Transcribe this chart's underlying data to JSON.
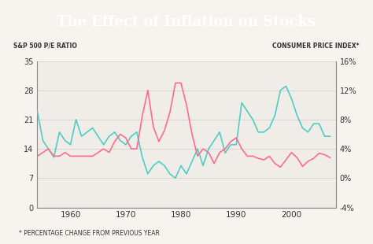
{
  "title": "The Effect of Inflation on Stocks",
  "title_bg_color": "#2d5f5a",
  "title_text_color": "#ffffff",
  "chart_bg_color": "#f0ede8",
  "left_label": "S&P 500 P/E RATIO",
  "right_label": "CONSUMER PRICE INDEX*",
  "footnote": "* PERCENTAGE CHANGE FROM PREVIOUS YEAR",
  "left_ylim": [
    0,
    35
  ],
  "left_yticks": [
    0,
    7,
    14,
    21,
    28,
    35
  ],
  "right_yticks_labels": [
    "-4%",
    "0%",
    "4%",
    "8%",
    "12%",
    "16%"
  ],
  "right_yticks_vals": [
    -1,
    0,
    1,
    2,
    3,
    4
  ],
  "pe_color": "#4ecdc4",
  "cpi_color": "#ff6b8a",
  "years": [
    1954,
    1955,
    1956,
    1957,
    1958,
    1959,
    1960,
    1961,
    1962,
    1963,
    1964,
    1965,
    1966,
    1967,
    1968,
    1969,
    1970,
    1971,
    1972,
    1973,
    1974,
    1975,
    1976,
    1977,
    1978,
    1979,
    1980,
    1981,
    1982,
    1983,
    1984,
    1985,
    1986,
    1987,
    1988,
    1989,
    1990,
    1991,
    1992,
    1993,
    1994,
    1995,
    1996,
    1997,
    1998,
    1999,
    2000,
    2001,
    2002,
    2003,
    2004,
    2005,
    2006,
    2007
  ],
  "pe_ratio": [
    23,
    16,
    14,
    12,
    18,
    16,
    15,
    21,
    17,
    18,
    19,
    17,
    15,
    17,
    18,
    16,
    15,
    17,
    18,
    12,
    8,
    10,
    11,
    10,
    8,
    7,
    10,
    8,
    11,
    14,
    10,
    14,
    16,
    18,
    13,
    15,
    15,
    25,
    23,
    21,
    18,
    18,
    19,
    22,
    28,
    29,
    26,
    22,
    19,
    18,
    20,
    20,
    17,
    17
  ],
  "cpi": [
    3,
    3.5,
    4,
    3,
    3,
    3.5,
    3,
    3,
    3,
    3,
    3,
    3.5,
    4,
    3.5,
    5,
    6,
    5.5,
    4,
    4,
    8.5,
    12,
    7,
    5,
    6.5,
    9,
    13,
    13,
    10,
    6,
    3,
    4,
    3.5,
    2,
    3.5,
    4,
    5,
    5.5,
    4,
    3,
    3,
    2.7,
    2.5,
    3,
    2,
    1.5,
    2.5,
    3.5,
    2.8,
    1.6,
    2.3,
    2.7,
    3.4,
    3.2,
    2.8
  ]
}
